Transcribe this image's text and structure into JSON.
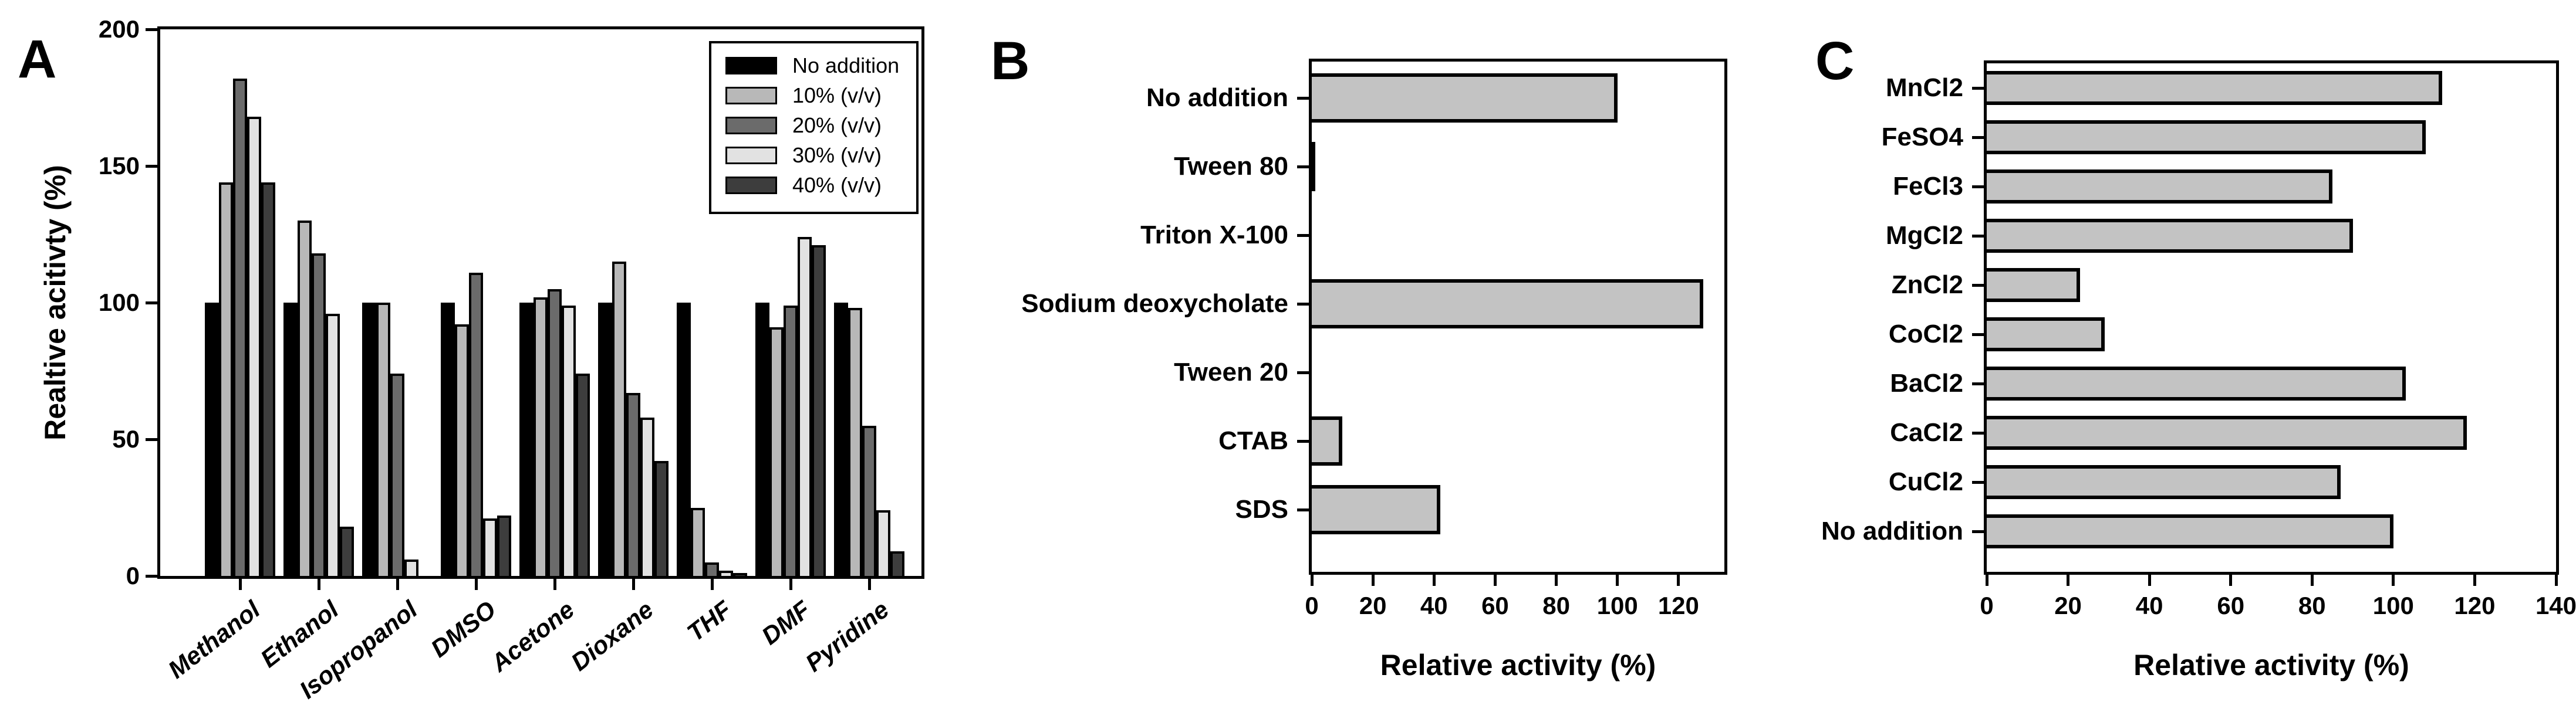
{
  "panels": [
    {
      "letter": "A"
    },
    {
      "letter": "B"
    },
    {
      "letter": "C"
    }
  ],
  "colors": {
    "bar_black": "#000000",
    "bar_gray_10": "#b8b8b8",
    "bar_gray_20": "#6b6b6b",
    "bar_gray_30": "#e2e2e2",
    "bar_gray_40": "#3d3d3d",
    "bar_light_gray": "#c3c3c3",
    "axis": "#000000",
    "background": "#ffffff"
  },
  "chart_data": [
    {
      "type": "bar",
      "orientation": "vertical",
      "grouped": true,
      "title": "",
      "ylabel": "Realtive acitivty (%)",
      "xlabel": "",
      "ylim": [
        0,
        200
      ],
      "yticks": [
        0,
        50,
        100,
        150,
        200
      ],
      "grid": false,
      "legend_position": "upper right",
      "categories": [
        "Methanol",
        "Ethanol",
        "Isopropanol",
        "DMSO",
        "Acetone",
        "Dioxane",
        "THF",
        "DMF",
        "Pyridine"
      ],
      "series": [
        {
          "name": "No addition",
          "color": "#000000",
          "values": [
            100,
            100,
            100,
            100,
            100,
            100,
            100,
            100,
            100
          ]
        },
        {
          "name": "10% (v/v)",
          "color": "#b8b8b8",
          "values": [
            144,
            130,
            100,
            92,
            102,
            115,
            25,
            91,
            98
          ]
        },
        {
          "name": "20% (v/v)",
          "color": "#6b6b6b",
          "values": [
            182,
            118,
            74,
            111,
            105,
            67,
            5,
            99,
            55
          ]
        },
        {
          "name": "30% (v/v)",
          "color": "#e2e2e2",
          "values": [
            168,
            96,
            6,
            21,
            99,
            58,
            2,
            124,
            24
          ]
        },
        {
          "name": "40% (v/v)",
          "color": "#3d3d3d",
          "values": [
            144,
            18,
            0,
            22,
            74,
            42,
            1,
            121,
            9
          ]
        }
      ]
    },
    {
      "type": "bar",
      "orientation": "horizontal",
      "title": "",
      "xlabel": "Relative activity (%)",
      "ylabel": "",
      "xlim": [
        0,
        135
      ],
      "xticks": [
        0,
        20,
        40,
        60,
        80,
        100,
        120
      ],
      "grid": false,
      "bar_color": "#c3c3c3",
      "categories": [
        "No addition",
        "Tween 80",
        "Triton X-100",
        "Sodium deoxycholate",
        "Tween 20",
        "CTAB",
        "SDS"
      ],
      "values": [
        100,
        1,
        0,
        128,
        0,
        10,
        42
      ]
    },
    {
      "type": "bar",
      "orientation": "horizontal",
      "title": "",
      "xlabel": "Relative activity (%)",
      "ylabel": "",
      "xlim": [
        0,
        140
      ],
      "xticks": [
        0,
        20,
        40,
        60,
        80,
        100,
        120,
        140
      ],
      "grid": false,
      "bar_color": "#c3c3c3",
      "categories": [
        "MnCl2",
        "FeSO4",
        "FeCl3",
        "MgCl2",
        "ZnCl2",
        "CoCl2",
        "BaCl2",
        "CaCl2",
        "CuCl2",
        "No addition"
      ],
      "values": [
        112,
        108,
        85,
        90,
        23,
        29,
        103,
        118,
        87,
        100
      ]
    }
  ]
}
